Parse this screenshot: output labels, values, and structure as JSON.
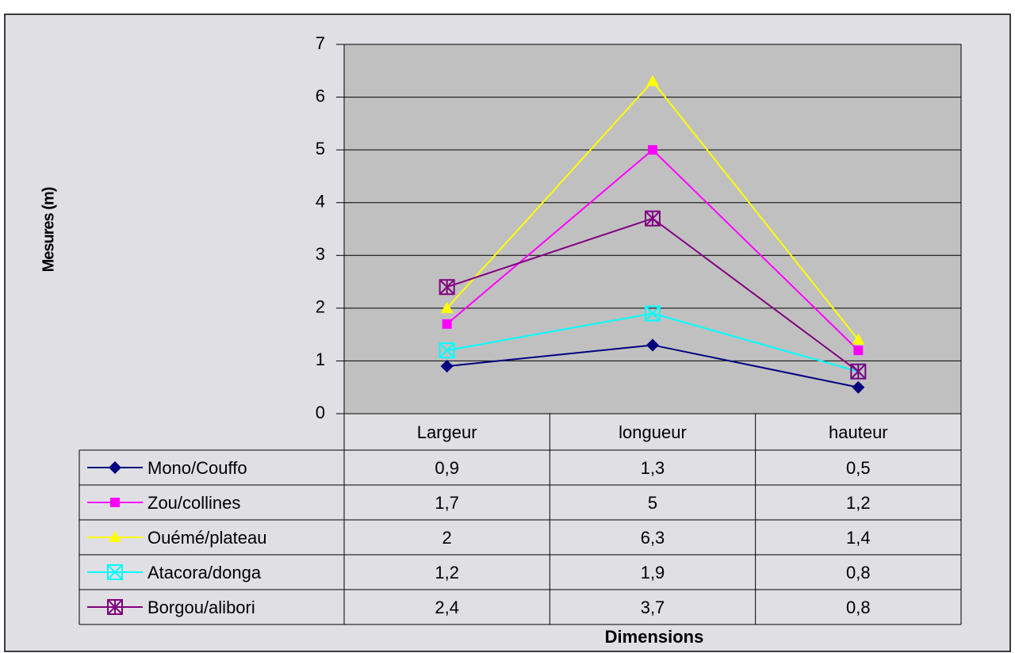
{
  "chart_data": {
    "type": "line",
    "x_label": "Dimensions",
    "y_label": "Mesures (m)",
    "categories": [
      "Largeur",
      "longueur",
      "hauteur"
    ],
    "series": [
      {
        "name": "Mono/Couffo",
        "color": "#000080",
        "marker": "diamond",
        "values": [
          0.9,
          1.3,
          0.5
        ],
        "value_labels": [
          "0,9",
          "1,3",
          "0,5"
        ]
      },
      {
        "name": "Zou/collines",
        "color": "#ff00ff",
        "marker": "square",
        "values": [
          1.7,
          5,
          1.2
        ],
        "value_labels": [
          "1,7",
          "5",
          "1,2"
        ]
      },
      {
        "name": "Ouémé/plateau",
        "color": "#ffff00",
        "marker": "triangle",
        "values": [
          2,
          6.3,
          1.4
        ],
        "value_labels": [
          "2",
          "6,3",
          "1,4"
        ]
      },
      {
        "name": "Atacora/donga",
        "color": "#00ffff",
        "marker": "box-x",
        "values": [
          1.2,
          1.9,
          0.8
        ],
        "value_labels": [
          "1,2",
          "1,9",
          "0,8"
        ]
      },
      {
        "name": "Borgou/alibori",
        "color": "#800080",
        "marker": "box-star",
        "values": [
          2.4,
          3.7,
          0.8
        ],
        "value_labels": [
          "2,4",
          "3,7",
          "0,8"
        ]
      }
    ],
    "ylim": [
      0,
      7
    ],
    "yticks": [
      0,
      1,
      2,
      3,
      4,
      5,
      6,
      7
    ],
    "grid": true,
    "plot_color": "#c0c0c0"
  }
}
